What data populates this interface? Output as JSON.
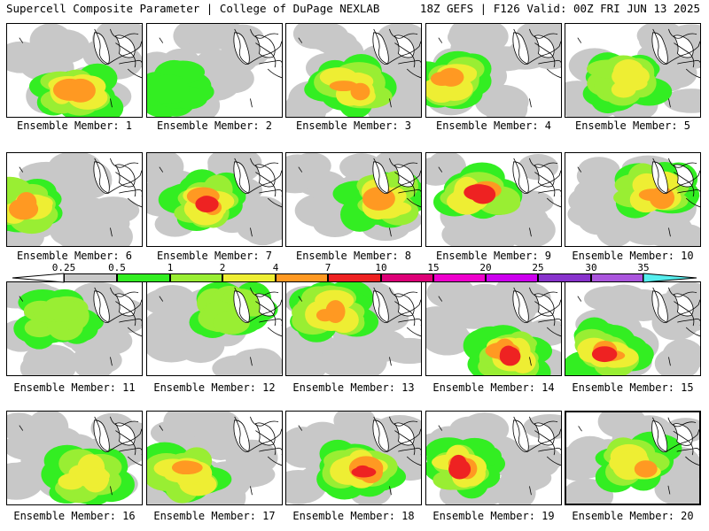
{
  "header": {
    "left": "Supercell Composite Parameter | College of DuPage NEXLAB",
    "right": "18Z GEFS | F126 Valid: 00Z FRI JUN 13 2025"
  },
  "colors": {
    "c0": "#c8c8c8",
    "c1": "#33ee22",
    "c2": "#99ee33",
    "c3": "#eeee33",
    "c4": "#ff9922",
    "c5": "#ee2222",
    "c6": "#dd0077",
    "c7": "#ee00cc",
    "c8": "#cc00ee",
    "c9": "#8833cc",
    "c10": "#aa55dd",
    "c11": "#55eeee"
  },
  "colorbar": {
    "labels": [
      "0.25",
      "0.5",
      "1",
      "2",
      "4",
      "7",
      "10",
      "15",
      "20",
      "25",
      "30",
      "35"
    ]
  },
  "members": [
    {
      "label": "Ensemble Member: 1",
      "level": 4
    },
    {
      "label": "Ensemble Member: 2",
      "level": 1
    },
    {
      "label": "Ensemble Member: 3",
      "level": 4
    },
    {
      "label": "Ensemble Member: 4",
      "level": 4
    },
    {
      "label": "Ensemble Member: 5",
      "level": 3
    },
    {
      "label": "Ensemble Member: 6",
      "level": 4
    },
    {
      "label": "Ensemble Member: 7",
      "level": 5
    },
    {
      "label": "Ensemble Member: 8",
      "level": 4
    },
    {
      "label": "Ensemble Member: 9",
      "level": 5
    },
    {
      "label": "Ensemble Member: 10",
      "level": 4
    },
    {
      "label": "Ensemble Member: 11",
      "level": 2
    },
    {
      "label": "Ensemble Member: 12",
      "level": 2
    },
    {
      "label": "Ensemble Member: 13",
      "level": 4
    },
    {
      "label": "Ensemble Member: 14",
      "level": 5
    },
    {
      "label": "Ensemble Member: 15",
      "level": 5
    },
    {
      "label": "Ensemble Member: 16",
      "level": 3
    },
    {
      "label": "Ensemble Member: 17",
      "level": 4
    },
    {
      "label": "Ensemble Member: 18",
      "level": 5
    },
    {
      "label": "Ensemble Member: 19",
      "level": 5
    },
    {
      "label": "Ensemble Member: 20",
      "level": 4
    }
  ]
}
